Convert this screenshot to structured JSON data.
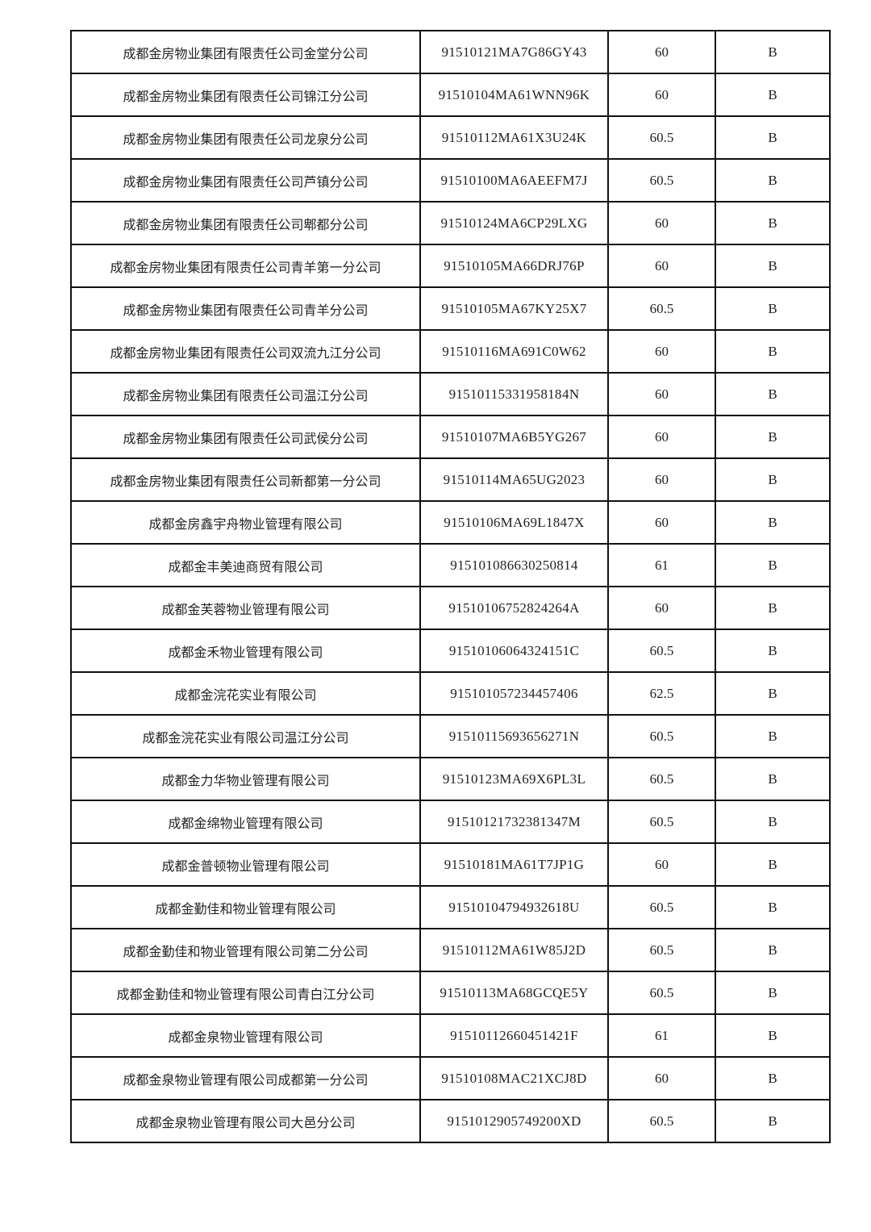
{
  "table": {
    "rows": [
      {
        "name": "成都金房物业集团有限责任公司金堂分公司",
        "code": "91510121MA7G86GY43",
        "score": "60",
        "grade": "B"
      },
      {
        "name": "成都金房物业集团有限责任公司锦江分公司",
        "code": "91510104MA61WNN96K",
        "score": "60",
        "grade": "B"
      },
      {
        "name": "成都金房物业集团有限责任公司龙泉分公司",
        "code": "91510112MA61X3U24K",
        "score": "60.5",
        "grade": "B"
      },
      {
        "name": "成都金房物业集团有限责任公司芦镇分公司",
        "code": "91510100MA6AEEFM7J",
        "score": "60.5",
        "grade": "B"
      },
      {
        "name": "成都金房物业集团有限责任公司郫都分公司",
        "code": "91510124MA6CP29LXG",
        "score": "60",
        "grade": "B"
      },
      {
        "name": "成都金房物业集团有限责任公司青羊第一分公司",
        "code": "91510105MA66DRJ76P",
        "score": "60",
        "grade": "B"
      },
      {
        "name": "成都金房物业集团有限责任公司青羊分公司",
        "code": "91510105MA67KY25X7",
        "score": "60.5",
        "grade": "B"
      },
      {
        "name": "成都金房物业集团有限责任公司双流九江分公司",
        "code": "91510116MA691C0W62",
        "score": "60",
        "grade": "B"
      },
      {
        "name": "成都金房物业集团有限责任公司温江分公司",
        "code": "9151011533195818 4N",
        "score": "60",
        "grade": "B"
      },
      {
        "name": "成都金房物业集团有限责任公司武侯分公司",
        "code": "91510107MA6B5YG267",
        "score": "60",
        "grade": "B"
      },
      {
        "name": "成都金房物业集团有限责任公司新都第一分公司",
        "code": "91510114MA65UG2023",
        "score": "60",
        "grade": "B"
      },
      {
        "name": "成都金房鑫宇舟物业管理有限公司",
        "code": "91510106MA69L1847X",
        "score": "60",
        "grade": "B"
      },
      {
        "name": "成都金丰美迪商贸有限公司",
        "code": "915101086630250814",
        "score": "61",
        "grade": "B"
      },
      {
        "name": "成都金芙蓉物业管理有限公司",
        "code": "91510106752824264A",
        "score": "60",
        "grade": "B"
      },
      {
        "name": "成都金禾物业管理有限公司",
        "code": "91510106064324151C",
        "score": "60.5",
        "grade": "B"
      },
      {
        "name": "成都金浣花实业有限公司",
        "code": "915101057234457406",
        "score": "62.5",
        "grade": "B"
      },
      {
        "name": "成都金浣花实业有限公司温江分公司",
        "code": "91510115693656271N",
        "score": "60.5",
        "grade": "B"
      },
      {
        "name": "成都金力华物业管理有限公司",
        "code": "91510123MA69X6PL3L",
        "score": "60.5",
        "grade": "B"
      },
      {
        "name": "成都金绵物业管理有限公司",
        "code": "91510121732381347M",
        "score": "60.5",
        "grade": "B"
      },
      {
        "name": "成都金普顿物业管理有限公司",
        "code": "91510181MA61T7JP1G",
        "score": "60",
        "grade": "B"
      },
      {
        "name": "成都金勤佳和物业管理有限公司",
        "code": "91510104794932618U",
        "score": "60.5",
        "grade": "B"
      },
      {
        "name": "成都金勤佳和物业管理有限公司第二分公司",
        "code": "91510112MA61W85J2D",
        "score": "60.5",
        "grade": "B"
      },
      {
        "name": "成都金勤佳和物业管理有限公司青白江分公司",
        "code": "91510113MA68GCQE5Y",
        "score": "60.5",
        "grade": "B"
      },
      {
        "name": "成都金泉物业管理有限公司",
        "code": "91510112660451421F",
        "score": "61",
        "grade": "B"
      },
      {
        "name": "成都金泉物业管理有限公司成都第一分公司",
        "code": "91510108MAC21XCJ8D",
        "score": "60",
        "grade": "B"
      },
      {
        "name": "成都金泉物业管理有限公司大邑分公司",
        "code": "915101290574920 0XD",
        "score": "60.5",
        "grade": "B"
      }
    ]
  }
}
